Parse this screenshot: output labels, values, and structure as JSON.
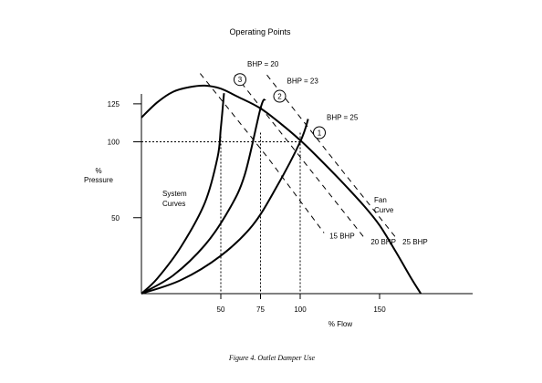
{
  "chart_data": {
    "type": "line",
    "title": "Operating Points",
    "caption": "Figure 4. Outlet Damper Use",
    "xlabel": "% Flow",
    "ylabel_line1": "%",
    "ylabel_line2": "Pressure",
    "x_ticks": [
      50,
      75,
      100,
      150
    ],
    "y_ticks": [
      50,
      100,
      125
    ],
    "xlim": [
      0,
      206
    ],
    "ylim": [
      0,
      138
    ],
    "grid": false,
    "fan_curve": {
      "name_line1": "Fan",
      "name_line2": "Curve",
      "points": [
        [
          0,
          116
        ],
        [
          10,
          126
        ],
        [
          20,
          133
        ],
        [
          30,
          136
        ],
        [
          40,
          137
        ],
        [
          50,
          135
        ],
        [
          60,
          130
        ],
        [
          75,
          122
        ],
        [
          90,
          110
        ],
        [
          100,
          101
        ],
        [
          110,
          91
        ],
        [
          125,
          75
        ],
        [
          140,
          58
        ],
        [
          150,
          45
        ],
        [
          160,
          28
        ],
        [
          170,
          10
        ],
        [
          176,
          0
        ]
      ]
    },
    "system_curves": {
      "label_line1": "System",
      "label_line2": "Curves",
      "series": [
        {
          "points": [
            [
              0,
              0
            ],
            [
              25,
              9
            ],
            [
              50,
              25
            ],
            [
              70,
              45
            ],
            [
              85,
              70
            ],
            [
              100,
              100
            ],
            [
              105,
              115
            ]
          ]
        },
        {
          "points": [
            [
              0,
              0
            ],
            [
              20,
              12
            ],
            [
              40,
              32
            ],
            [
              55,
              55
            ],
            [
              65,
              78
            ],
            [
              75,
              122
            ],
            [
              78,
              128
            ]
          ]
        },
        {
          "points": [
            [
              0,
              0
            ],
            [
              10,
              10
            ],
            [
              25,
              31
            ],
            [
              40,
              60
            ],
            [
              48,
              90
            ],
            [
              50,
              109
            ],
            [
              52,
              132
            ]
          ]
        }
      ]
    },
    "bhp_lines": [
      {
        "label": "25 BHP",
        "points": [
          [
            79,
            144
          ],
          [
            128,
            79
          ],
          [
            161,
            36
          ]
        ]
      },
      {
        "label": "20 BHP",
        "points": [
          [
            59,
            144
          ],
          [
            100,
            90
          ],
          [
            141,
            36
          ]
        ]
      },
      {
        "label": "15 BHP",
        "points": [
          [
            37,
            145
          ],
          [
            80,
            89
          ],
          [
            115,
            40
          ]
        ]
      }
    ],
    "operating_points": [
      {
        "id": "1",
        "label": "BHP = 25",
        "x": 100,
        "y": 100
      },
      {
        "id": "2",
        "label": "BHP = 23",
        "x": 75,
        "y": 124
      },
      {
        "id": "3",
        "label": "BHP = 20",
        "x": 50,
        "y": 135
      }
    ],
    "reference_points": [
      {
        "x": 50,
        "y": 100
      },
      {
        "x": 75,
        "y": 100
      },
      {
        "x": 100,
        "y": 100
      }
    ]
  }
}
